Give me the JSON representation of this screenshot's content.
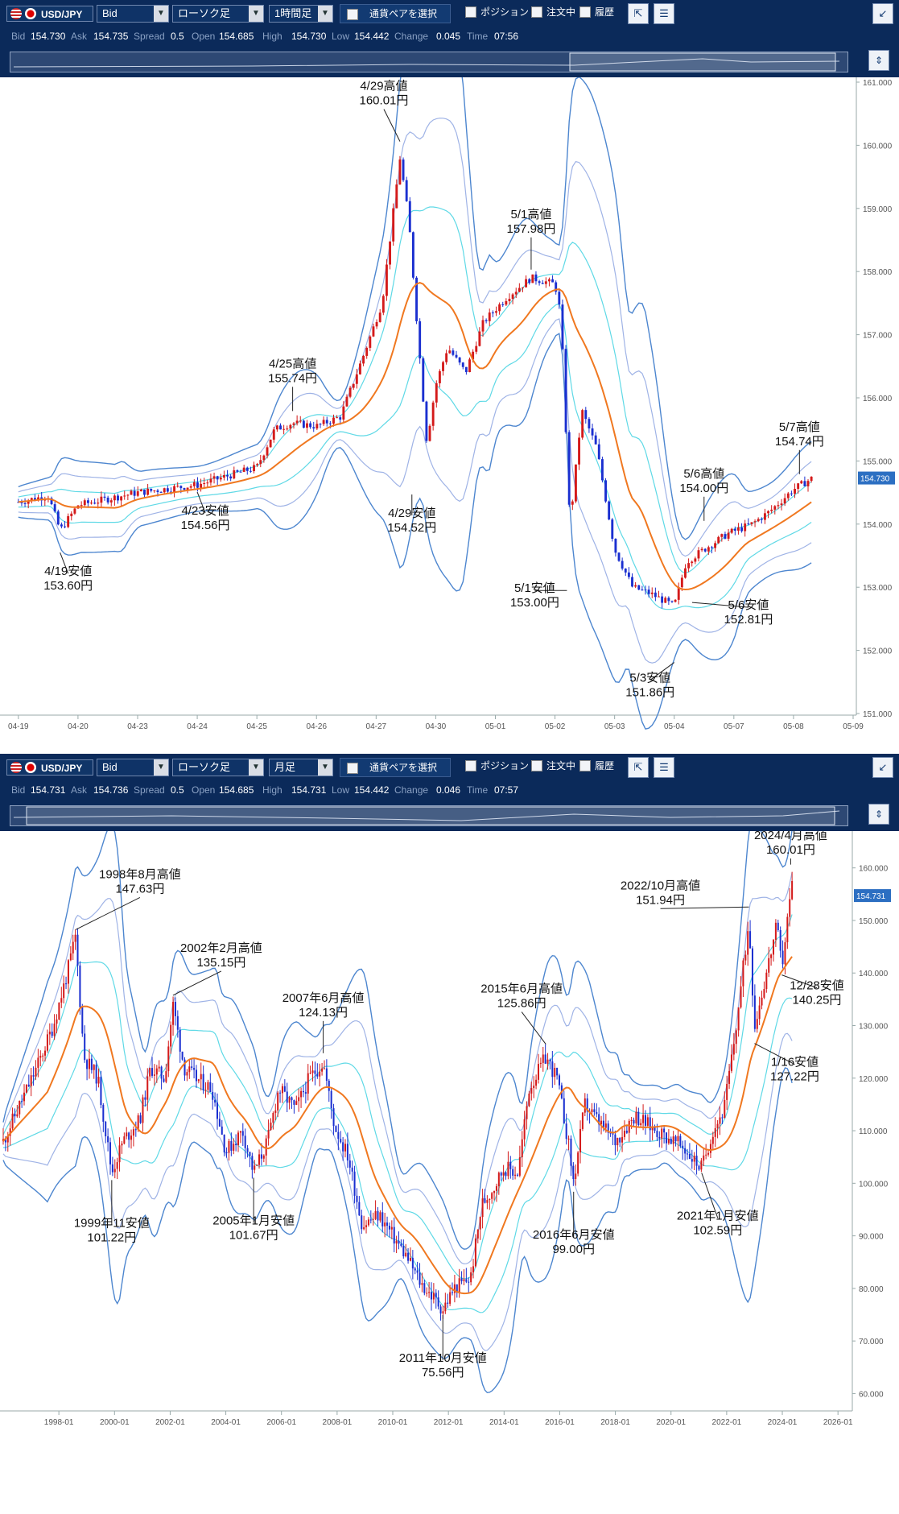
{
  "panels": [
    {
      "symbol": "USD/JPY",
      "price_type": "Bid",
      "chart_style": "ローソク足",
      "period": "1時間足",
      "pair_button": "通貨ペアを選択",
      "checks": [
        "ポジション",
        "注文中",
        "履歴"
      ],
      "quotes": [
        {
          "label": "Bid",
          "value": "154.730"
        },
        {
          "label": "Ask",
          "value": "154.735"
        },
        {
          "label": "Spread",
          "value": "0.5"
        },
        {
          "label": "Open",
          "value": "154.685"
        },
        {
          "label": "High",
          "value": "154.730"
        },
        {
          "label": "Low",
          "value": "154.442"
        },
        {
          "label": "Change",
          "value": "0.045"
        },
        {
          "label": "Time",
          "value": "07:56"
        }
      ]
    },
    {
      "symbol": "USD/JPY",
      "price_type": "Bid",
      "chart_style": "ローソク足",
      "period": "月足",
      "pair_button": "通貨ペアを選択",
      "checks": [
        "ポジション",
        "注文中",
        "履歴"
      ],
      "quotes": [
        {
          "label": "Bid",
          "value": "154.731"
        },
        {
          "label": "Ask",
          "value": "154.736"
        },
        {
          "label": "Spread",
          "value": "0.5"
        },
        {
          "label": "Open",
          "value": "154.685"
        },
        {
          "label": "High",
          "value": "154.731"
        },
        {
          "label": "Low",
          "value": "154.442"
        },
        {
          "label": "Change",
          "value": "0.046"
        },
        {
          "label": "Time",
          "value": "07:57"
        }
      ]
    }
  ],
  "colors": {
    "up": "#d41a1a",
    "down": "#1a2fd0",
    "sma": "#f07820",
    "band1": "#5fd9e6",
    "band2": "#9fb3e6",
    "band3": "#4d86cf",
    "price_tag": "#2c6fc2"
  },
  "chart_data": [
    {
      "type": "candlestick",
      "timeframe": "hourly",
      "x_ticks": [
        "04-19",
        "04-20",
        "04-23",
        "04-24",
        "04-25",
        "04-26",
        "04-27",
        "04-30",
        "05-01",
        "05-02",
        "05-03",
        "05-04",
        "05-07",
        "05-08",
        "05-09"
      ],
      "y_ticks": [
        "151.000",
        "152.000",
        "153.000",
        "154.000",
        "155.000",
        "156.000",
        "157.000",
        "158.000",
        "159.000",
        "160.000",
        "161.000"
      ],
      "ylim": [
        151,
        161
      ],
      "current_price": "154.730",
      "series": [
        {
          "name": "close",
          "points": [
            [
              0,
              154.35
            ],
            [
              0.5,
              154.45
            ],
            [
              0.7,
              153.9
            ],
            [
              1,
              154.3
            ],
            [
              2,
              154.5
            ],
            [
              3,
              154.62
            ],
            [
              4,
              154.9
            ],
            [
              4.3,
              155.5
            ],
            [
              4.6,
              155.6
            ],
            [
              5,
              155.55
            ],
            [
              5.4,
              155.7
            ],
            [
              5.8,
              156.7
            ],
            [
              6.1,
              157.5
            ],
            [
              6.4,
              159.8
            ],
            [
              6.55,
              158.8
            ],
            [
              6.7,
              157.0
            ],
            [
              6.85,
              155.3
            ],
            [
              7.0,
              156.2
            ],
            [
              7.2,
              156.8
            ],
            [
              7.5,
              156.4
            ],
            [
              7.8,
              157.2
            ],
            [
              8.2,
              157.6
            ],
            [
              8.6,
              157.9
            ],
            [
              9.0,
              157.8
            ],
            [
              9.1,
              157.3
            ],
            [
              9.25,
              154.0
            ],
            [
              9.45,
              155.8
            ],
            [
              9.7,
              155.2
            ],
            [
              10.0,
              153.6
            ],
            [
              10.3,
              153.0
            ],
            [
              10.6,
              152.9
            ],
            [
              11.0,
              152.7
            ],
            [
              11.2,
              153.4
            ],
            [
              11.5,
              153.6
            ],
            [
              11.9,
              153.85
            ],
            [
              12.3,
              154.0
            ],
            [
              12.6,
              154.2
            ],
            [
              13.0,
              154.55
            ],
            [
              13.3,
              154.72
            ]
          ]
        }
      ],
      "annotations": [
        {
          "line1": "4/19安値",
          "line2": "153.60円",
          "x": 0.7,
          "y": 153.6
        },
        {
          "line1": "4/23安値",
          "line2": "154.56円",
          "x": 3.0,
          "y": 154.56
        },
        {
          "line1": "4/25高値",
          "line2": "155.74円",
          "x": 4.6,
          "y": 155.74
        },
        {
          "line1": "4/29高値",
          "line2": "160.01円",
          "x": 6.4,
          "y": 160.01
        },
        {
          "line1": "4/29安値",
          "line2": "154.52円",
          "x": 6.6,
          "y": 154.52
        },
        {
          "line1": "5/1高値",
          "line2": "157.98円",
          "x": 8.6,
          "y": 157.98
        },
        {
          "line1": "5/1安値",
          "line2": "153.00円",
          "x": 9.2,
          "y": 153.0
        },
        {
          "line1": "5/3安値",
          "line2": "151.86円",
          "x": 11.0,
          "y": 151.86
        },
        {
          "line1": "5/6高値",
          "line2": "154.00円",
          "x": 11.5,
          "y": 154.0
        },
        {
          "line1": "5/6安値",
          "line2": "152.81円",
          "x": 11.3,
          "y": 152.81
        },
        {
          "line1": "5/7高値",
          "line2": "154.74円",
          "x": 13.1,
          "y": 154.74
        }
      ]
    },
    {
      "type": "candlestick",
      "timeframe": "monthly",
      "x_ticks": [
        "1998-01",
        "2000-01",
        "2002-01",
        "2004-01",
        "2006-01",
        "2008-01",
        "2010-01",
        "2012-01",
        "2014-01",
        "2016-01",
        "2018-01",
        "2020-01",
        "2022-01",
        "2024-01",
        "2026-01"
      ],
      "y_ticks": [
        "60.000",
        "70.000",
        "80.000",
        "90.000",
        "100.000",
        "110.000",
        "120.000",
        "130.000",
        "140.000",
        "150.000",
        "160.000"
      ],
      "ylim": [
        57,
        167
      ],
      "current_price": "154.731",
      "series": [
        {
          "name": "close",
          "points": [
            [
              1996.0,
              108
            ],
            [
              1996.6,
              115
            ],
            [
              1997.2,
              122
            ],
            [
              1997.8,
              130
            ],
            [
              1998.3,
              140
            ],
            [
              1998.6,
              147
            ],
            [
              1998.9,
              124
            ],
            [
              1999.4,
              120
            ],
            [
              1999.9,
              102
            ],
            [
              2000.3,
              108
            ],
            [
              2000.9,
              112
            ],
            [
              2001.3,
              122
            ],
            [
              2001.8,
              120
            ],
            [
              2002.1,
              134
            ],
            [
              2002.5,
              122
            ],
            [
              2002.9,
              120
            ],
            [
              2003.5,
              118
            ],
            [
              2004.0,
              106
            ],
            [
              2004.6,
              110
            ],
            [
              2005.0,
              102
            ],
            [
              2005.5,
              108
            ],
            [
              2005.9,
              118
            ],
            [
              2006.5,
              114
            ],
            [
              2007.0,
              120
            ],
            [
              2007.5,
              123
            ],
            [
              2007.9,
              111
            ],
            [
              2008.4,
              105
            ],
            [
              2008.9,
              92
            ],
            [
              2009.5,
              94
            ],
            [
              2010.0,
              90
            ],
            [
              2010.5,
              86
            ],
            [
              2011.0,
              81
            ],
            [
              2011.5,
              78
            ],
            [
              2011.8,
              76
            ],
            [
              2012.2,
              80
            ],
            [
              2012.8,
              82
            ],
            [
              2013.2,
              96
            ],
            [
              2013.6,
              99
            ],
            [
              2014.0,
              103
            ],
            [
              2014.5,
              102
            ],
            [
              2014.9,
              118
            ],
            [
              2015.5,
              124
            ],
            [
              2015.9,
              120
            ],
            [
              2016.3,
              108
            ],
            [
              2016.5,
              100
            ],
            [
              2016.9,
              115
            ],
            [
              2017.5,
              111
            ],
            [
              2018.0,
              108
            ],
            [
              2018.7,
              113
            ],
            [
              2019.2,
              111
            ],
            [
              2019.8,
              109
            ],
            [
              2020.4,
              107
            ],
            [
              2020.9,
              104
            ],
            [
              2021.1,
              103
            ],
            [
              2021.5,
              110
            ],
            [
              2021.9,
              114
            ],
            [
              2022.3,
              128
            ],
            [
              2022.8,
              150
            ],
            [
              2023.0,
              130
            ],
            [
              2023.3,
              137
            ],
            [
              2023.8,
              149
            ],
            [
              2023.98,
              141
            ],
            [
              2024.2,
              151
            ],
            [
              2024.35,
              157
            ]
          ]
        }
      ],
      "annotations": [
        {
          "line1": "1998年8月高値",
          "line2": "147.63円",
          "x": 1998.6,
          "y": 147.63
        },
        {
          "line1": "1999年11安値",
          "line2": "101.22円",
          "x": 1999.9,
          "y": 101.22
        },
        {
          "line1": "2002年2月高値",
          "line2": "135.15円",
          "x": 2002.1,
          "y": 135.15
        },
        {
          "line1": "2005年1月安値",
          "line2": "101.67円",
          "x": 2005.0,
          "y": 101.67
        },
        {
          "line1": "2007年6月高値",
          "line2": "124.13円",
          "x": 2007.5,
          "y": 124.13
        },
        {
          "line1": "2011年10月安値",
          "line2": "75.56円",
          "x": 2011.8,
          "y": 75.56
        },
        {
          "line1": "2015年6月高値",
          "line2": "125.86円",
          "x": 2015.5,
          "y": 125.86
        },
        {
          "line1": "2016年6月安値",
          "line2": "99.00円",
          "x": 2016.5,
          "y": 99.0
        },
        {
          "line1": "2021年1月安値",
          "line2": "102.59円",
          "x": 2021.1,
          "y": 102.59
        },
        {
          "line1": "2022/10月高値",
          "line2": "151.94円",
          "x": 2022.8,
          "y": 151.94
        },
        {
          "line1": "1/16安値",
          "line2": "127.22円",
          "x": 2023.0,
          "y": 127.22
        },
        {
          "line1": "12/28安値",
          "line2": "140.25円",
          "x": 2023.98,
          "y": 140.25
        },
        {
          "line1": "2024/4月高値",
          "line2": "160.01円",
          "x": 2024.3,
          "y": 160.01
        }
      ]
    }
  ]
}
